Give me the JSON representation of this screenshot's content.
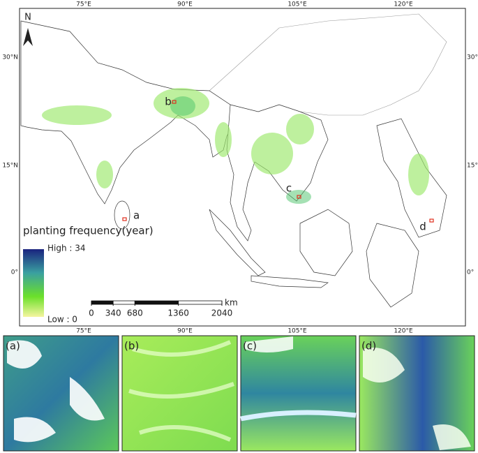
{
  "map": {
    "north": "N",
    "top_labels": [
      "75°E",
      "90°E",
      "105°E",
      "120°E"
    ],
    "left_labels": [
      "30°N",
      "15°N",
      "0°"
    ],
    "right_labels": [
      "30°N",
      "15°N",
      "0°"
    ],
    "sites": [
      "a",
      "b",
      "c",
      "d"
    ],
    "legend": {
      "title": "planting frequency(year)",
      "high": "High : 34",
      "low": "Low : 0"
    },
    "scale_bar": {
      "ticks": [
        0,
        340,
        680,
        1360,
        2040
      ],
      "unit": "km"
    }
  },
  "panels": {
    "top_labels": [
      "75°E",
      "90°E",
      "105°E",
      "120°E"
    ],
    "labels": [
      "(a)",
      "(b)",
      "(c)",
      "(d)"
    ]
  }
}
